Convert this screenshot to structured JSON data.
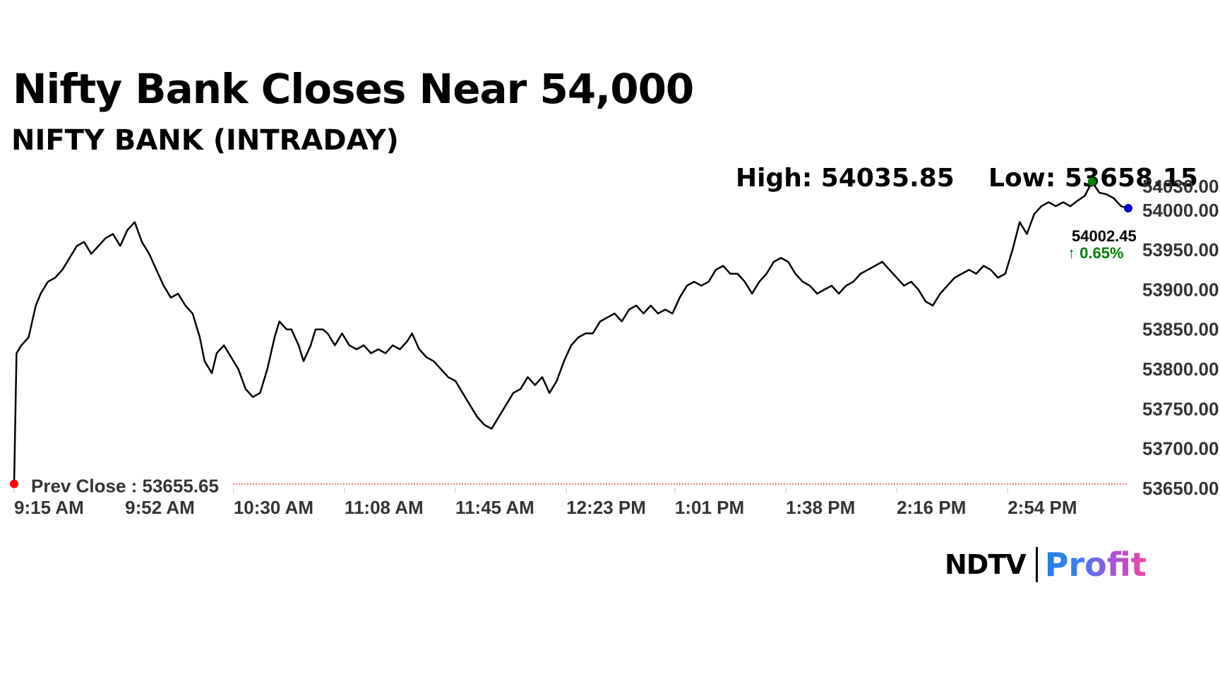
{
  "header": {
    "title": "Nifty Bank Closes Near 54,000",
    "subtitle": "NIFTY BANK (INTRADAY)",
    "high_text": "High: 54035.85",
    "low_text": "Low: 53658.15"
  },
  "logo": {
    "left": "NDTV",
    "right": "Profit"
  },
  "colors": {
    "line": "#000000",
    "high_dot": "#008000",
    "low_dot": "#ff0000",
    "last_dot": "#0000cc",
    "change": "#008000",
    "prev_close_line": "#d9534f",
    "axis_text": "#333333"
  },
  "chart_data": {
    "type": "line",
    "title": "NIFTY BANK (INTRADAY)",
    "series": [
      {
        "values": [
          [
            0,
            53655.65
          ],
          [
            1,
            53820
          ],
          [
            3,
            53830
          ],
          [
            6,
            53840
          ],
          [
            9,
            53880
          ],
          [
            11,
            53895
          ],
          [
            14,
            53910
          ],
          [
            17,
            53915
          ],
          [
            20,
            53925
          ],
          [
            23,
            53940
          ],
          [
            26,
            53955
          ],
          [
            29,
            53960
          ],
          [
            32,
            53945
          ],
          [
            35,
            53955
          ],
          [
            38,
            53965
          ],
          [
            41,
            53970
          ],
          [
            44,
            53955
          ],
          [
            47,
            53975
          ],
          [
            50,
            53985
          ],
          [
            53,
            53960
          ],
          [
            56,
            53945
          ],
          [
            59,
            53925
          ],
          [
            62,
            53905
          ],
          [
            65,
            53890
          ],
          [
            68,
            53895
          ],
          [
            71,
            53880
          ],
          [
            74,
            53870
          ],
          [
            77,
            53840
          ],
          [
            79,
            53810
          ],
          [
            82,
            53795
          ],
          [
            84,
            53820
          ],
          [
            87,
            53830
          ],
          [
            90,
            53815
          ],
          [
            93,
            53800
          ],
          [
            96,
            53775
          ],
          [
            99,
            53765
          ],
          [
            102,
            53770
          ],
          [
            105,
            53800
          ],
          [
            108,
            53840
          ],
          [
            110,
            53860
          ],
          [
            113,
            53850
          ],
          [
            115,
            53850
          ],
          [
            118,
            53830
          ],
          [
            120,
            53810
          ],
          [
            123,
            53830
          ],
          [
            125,
            53850
          ],
          [
            128,
            53850
          ],
          [
            130,
            53845
          ],
          [
            133,
            53830
          ],
          [
            136,
            53845
          ],
          [
            139,
            53830
          ],
          [
            142,
            53825
          ],
          [
            145,
            53830
          ],
          [
            148,
            53820
          ],
          [
            151,
            53825
          ],
          [
            154,
            53820
          ],
          [
            157,
            53830
          ],
          [
            160,
            53825
          ],
          [
            163,
            53835
          ],
          [
            165,
            53845
          ],
          [
            168,
            53825
          ],
          [
            171,
            53815
          ],
          [
            174,
            53810
          ],
          [
            177,
            53800
          ],
          [
            180,
            53790
          ],
          [
            183,
            53785
          ],
          [
            186,
            53770
          ],
          [
            189,
            53755
          ],
          [
            192,
            53740
          ],
          [
            195,
            53730
          ],
          [
            198,
            53725
          ],
          [
            201,
            53740
          ],
          [
            204,
            53755
          ],
          [
            207,
            53770
          ],
          [
            210,
            53775
          ],
          [
            213,
            53790
          ],
          [
            216,
            53780
          ],
          [
            219,
            53790
          ],
          [
            222,
            53770
          ],
          [
            225,
            53785
          ],
          [
            228,
            53810
          ],
          [
            231,
            53830
          ],
          [
            234,
            53840
          ],
          [
            237,
            53845
          ],
          [
            240,
            53845
          ],
          [
            243,
            53860
          ],
          [
            246,
            53865
          ],
          [
            249,
            53870
          ],
          [
            252,
            53860
          ],
          [
            255,
            53875
          ],
          [
            258,
            53880
          ],
          [
            261,
            53870
          ],
          [
            264,
            53880
          ],
          [
            267,
            53870
          ],
          [
            270,
            53875
          ],
          [
            273,
            53870
          ],
          [
            276,
            53890
          ],
          [
            279,
            53905
          ],
          [
            282,
            53910
          ],
          [
            285,
            53905
          ],
          [
            288,
            53910
          ],
          [
            291,
            53925
          ],
          [
            294,
            53930
          ],
          [
            297,
            53920
          ],
          [
            300,
            53920
          ],
          [
            303,
            53910
          ],
          [
            306,
            53895
          ],
          [
            309,
            53910
          ],
          [
            312,
            53920
          ],
          [
            315,
            53935
          ],
          [
            318,
            53940
          ],
          [
            321,
            53935
          ],
          [
            324,
            53920
          ],
          [
            327,
            53910
          ],
          [
            330,
            53905
          ],
          [
            333,
            53895
          ],
          [
            336,
            53900
          ],
          [
            339,
            53905
          ],
          [
            342,
            53895
          ],
          [
            345,
            53905
          ],
          [
            348,
            53910
          ],
          [
            351,
            53920
          ],
          [
            354,
            53925
          ],
          [
            357,
            53930
          ],
          [
            360,
            53935
          ],
          [
            363,
            53925
          ],
          [
            366,
            53915
          ],
          [
            369,
            53905
          ],
          [
            372,
            53910
          ],
          [
            375,
            53900
          ],
          [
            378,
            53885
          ],
          [
            381,
            53880
          ],
          [
            384,
            53895
          ],
          [
            387,
            53905
          ],
          [
            390,
            53915
          ],
          [
            393,
            53920
          ],
          [
            396,
            53925
          ],
          [
            399,
            53920
          ],
          [
            402,
            53930
          ],
          [
            405,
            53925
          ],
          [
            408,
            53915
          ],
          [
            411,
            53920
          ],
          [
            414,
            53950
          ],
          [
            417,
            53985
          ],
          [
            420,
            53970
          ],
          [
            423,
            53995
          ],
          [
            426,
            54005
          ],
          [
            429,
            54010
          ],
          [
            432,
            54005
          ],
          [
            435,
            54010
          ],
          [
            438,
            54005
          ],
          [
            441,
            54012
          ],
          [
            444,
            54018
          ],
          [
            447,
            54035.85
          ],
          [
            450,
            54022
          ],
          [
            453,
            54020
          ],
          [
            456,
            54015
          ],
          [
            459,
            54005
          ],
          [
            462,
            54002.45
          ]
        ]
      }
    ],
    "high": 54035.85,
    "high_x": 447,
    "low": 53658.15,
    "prev_close": 53655.65,
    "prev_close_label": "Prev Close : 53655.65",
    "last_value_label": "54002.45",
    "change_label": "↑ 0.65%",
    "xlim": [
      0,
      462
    ],
    "ylim": [
      53650,
      54030
    ],
    "xticks": [
      {
        "x": 0,
        "label": "9:15 AM"
      },
      {
        "x": 46,
        "label": "9:52 AM"
      },
      {
        "x": 91,
        "label": "10:30 AM"
      },
      {
        "x": 137,
        "label": "11:08 AM"
      },
      {
        "x": 183,
        "label": "11:45 AM"
      },
      {
        "x": 229,
        "label": "12:23 PM"
      },
      {
        "x": 274,
        "label": "1:01 PM"
      },
      {
        "x": 320,
        "label": "1:38 PM"
      },
      {
        "x": 366,
        "label": "2:16 PM"
      },
      {
        "x": 412,
        "label": "2:54 PM"
      }
    ],
    "yticks": [
      {
        "v": 53650,
        "label": "53650.00"
      },
      {
        "v": 53700,
        "label": "53700.00"
      },
      {
        "v": 53750,
        "label": "53750.00"
      },
      {
        "v": 53800,
        "label": "53800.00"
      },
      {
        "v": 53850,
        "label": "53850.00"
      },
      {
        "v": 53900,
        "label": "53900.00"
      },
      {
        "v": 53950,
        "label": "53950.00"
      },
      {
        "v": 54000,
        "label": "54000.00"
      },
      {
        "v": 54030,
        "label": "54030.00"
      }
    ]
  }
}
